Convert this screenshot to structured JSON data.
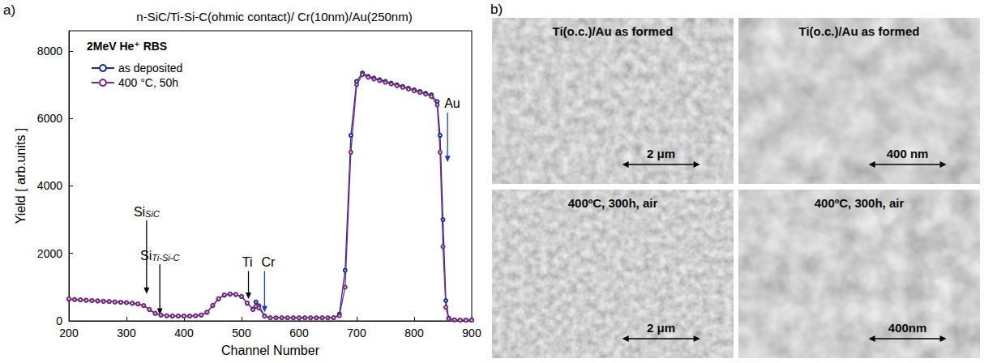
{
  "chart_data": {
    "type": "line",
    "panel": "a)",
    "title": "n-SiC/Ti-Si-C(ohmic contact)/ Cr(10nm)/Au(250nm)",
    "note": "2MeV He⁺ RBS",
    "x_label": "Channel Number",
    "y_label": "Yield [ arb.units ]",
    "xlim": [
      200,
      900
    ],
    "xticks": [
      200,
      300,
      400,
      500,
      600,
      700,
      800,
      900
    ],
    "ylim": [
      0,
      8600
    ],
    "yticks": [
      0,
      2000,
      4000,
      6000,
      8000
    ],
    "grid": false,
    "legend": "upper left",
    "marker": "circle",
    "x": [
      200,
      210,
      220,
      230,
      240,
      250,
      260,
      270,
      280,
      290,
      300,
      310,
      320,
      330,
      340,
      350,
      360,
      370,
      380,
      390,
      400,
      410,
      420,
      430,
      440,
      450,
      460,
      470,
      480,
      490,
      500,
      510,
      520,
      525,
      530,
      540,
      550,
      560,
      570,
      580,
      590,
      600,
      610,
      620,
      630,
      640,
      650,
      660,
      670,
      680,
      690,
      700,
      710,
      720,
      730,
      740,
      750,
      760,
      770,
      780,
      790,
      800,
      810,
      820,
      830,
      840,
      845,
      850,
      855,
      860,
      870,
      880,
      890,
      900
    ],
    "series": [
      {
        "name": "as deposited",
        "color": "#1c2d8f",
        "values": [
          640,
          630,
          620,
          610,
          600,
          590,
          580,
          570,
          560,
          550,
          540,
          520,
          500,
          450,
          330,
          220,
          170,
          150,
          140,
          140,
          140,
          140,
          150,
          170,
          250,
          450,
          650,
          760,
          790,
          780,
          720,
          520,
          350,
          560,
          450,
          150,
          90,
          90,
          90,
          90,
          90,
          90,
          90,
          90,
          90,
          90,
          90,
          90,
          200,
          1500,
          5500,
          7100,
          7350,
          7250,
          7200,
          7150,
          7100,
          7050,
          7000,
          6950,
          6900,
          6850,
          6800,
          6750,
          6700,
          6500,
          5500,
          3000,
          600,
          80,
          30,
          20,
          20,
          20
        ]
      },
      {
        "name": "400 °C, 50h",
        "color": "#7b2a7e",
        "values": [
          650,
          635,
          625,
          612,
          602,
          592,
          582,
          572,
          562,
          552,
          540,
          522,
          502,
          455,
          340,
          225,
          172,
          152,
          142,
          142,
          142,
          142,
          152,
          175,
          260,
          460,
          660,
          770,
          800,
          785,
          725,
          530,
          330,
          430,
          380,
          140,
          90,
          90,
          90,
          90,
          90,
          90,
          90,
          90,
          90,
          90,
          90,
          95,
          150,
          1000,
          5000,
          7000,
          7300,
          7220,
          7170,
          7120,
          7070,
          7020,
          6970,
          6920,
          6870,
          6820,
          6770,
          6720,
          6650,
          6400,
          5000,
          2200,
          400,
          60,
          30,
          20,
          20,
          20
        ]
      }
    ],
    "annotations": [
      {
        "text": "Si",
        "subscript": "SiC",
        "channel": 335
      },
      {
        "text": "Si",
        "subscript": "Ti-Si-C",
        "channel": 358
      },
      {
        "text": "Ti",
        "channel": 512
      },
      {
        "text": "Cr",
        "channel": 540,
        "color": "#1f3fbf"
      },
      {
        "text": "Au",
        "channel": 858,
        "color": "#1f3fbf"
      }
    ]
  },
  "panel_b": {
    "label": "b)",
    "images": [
      {
        "caption": "Ti(o.c.)/Au as formed",
        "scale_bar": "2 μm"
      },
      {
        "caption": "Ti(o.c.)/Au as formed",
        "scale_bar": "400 nm"
      },
      {
        "caption": "400ºC, 300h, air",
        "scale_bar": "2 μm"
      },
      {
        "caption": "400ºC, 300h, air",
        "scale_bar": "400nm"
      }
    ]
  }
}
